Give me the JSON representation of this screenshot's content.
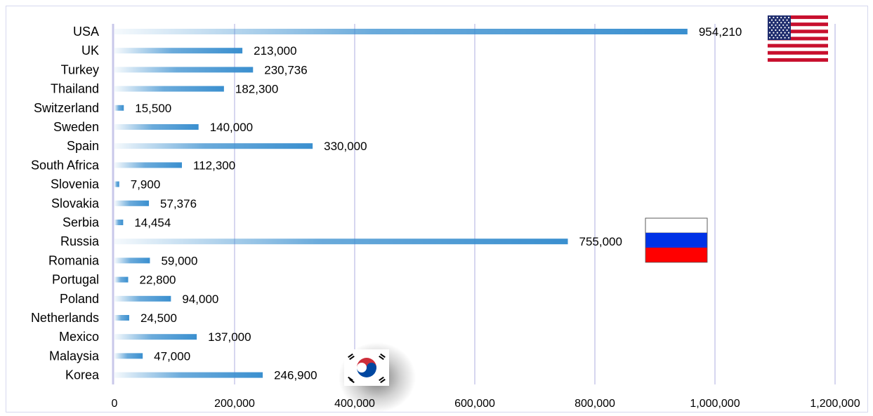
{
  "chart_data": {
    "type": "bar",
    "orientation": "horizontal",
    "categories": [
      "USA",
      "UK",
      "Turkey",
      "Thailand",
      "Switzerland",
      "Sweden",
      "Spain",
      "South Africa",
      "Slovenia",
      "Slovakia",
      "Serbia",
      "Russia",
      "Romania",
      "Portugal",
      "Poland",
      "Netherlands",
      "Mexico",
      "Malaysia",
      "Korea"
    ],
    "values": [
      954210,
      213000,
      230736,
      182300,
      15500,
      140000,
      330000,
      112300,
      7900,
      57376,
      14454,
      755000,
      59000,
      22800,
      94000,
      24500,
      137000,
      47000,
      246900
    ],
    "value_labels": [
      "954,210",
      "213,000",
      "230,736",
      "182,300",
      "15,500",
      "140,000",
      "330,000",
      "112,300",
      "7,900",
      "57,376",
      "14,454",
      "755,000",
      "59,000",
      "22,800",
      "94,000",
      "24,500",
      "137,000",
      "47,000",
      "246,900"
    ],
    "xlim": [
      0,
      1200000
    ],
    "xticks": [
      0,
      200000,
      400000,
      600000,
      800000,
      1000000,
      1200000
    ],
    "xtick_labels": [
      "0",
      "200,000",
      "400,000",
      "600,000",
      "800,000",
      "1,000,000",
      "1,200,000"
    ],
    "grid": "vertical",
    "bar_color": "#3a8fcf",
    "grid_color": "#c9c8ea",
    "flags": [
      {
        "country": "USA",
        "icon": "us-flag-icon"
      },
      {
        "country": "Russia",
        "icon": "russia-flag-icon"
      },
      {
        "country": "Korea",
        "icon": "korea-flag-icon"
      }
    ]
  }
}
